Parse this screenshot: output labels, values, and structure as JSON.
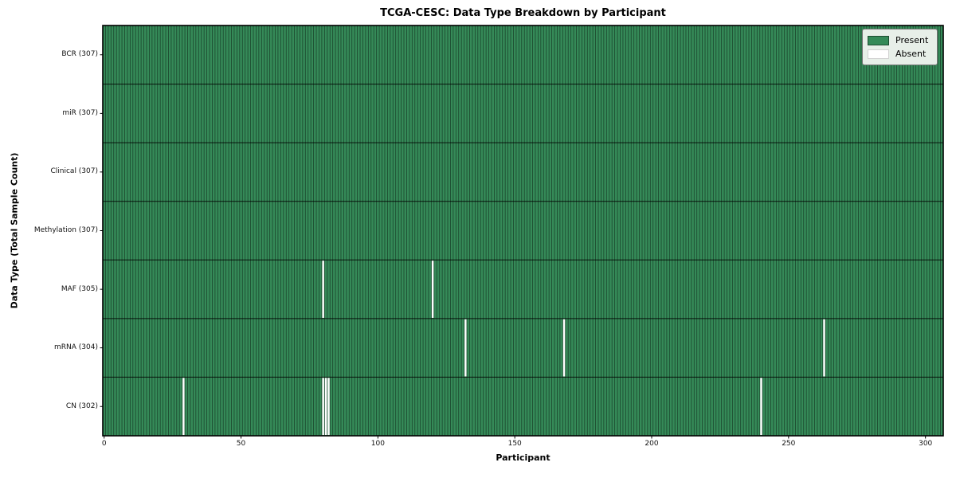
{
  "chart_data": {
    "type": "heatmap",
    "title": "TCGA-CESC: Data Type Breakdown by Participant",
    "xlabel": "Participant",
    "ylabel": "Data Type (Total Sample Count)",
    "n_participants": 307,
    "x_ticks": [
      0,
      50,
      100,
      150,
      200,
      250,
      300
    ],
    "xlim": [
      -0.5,
      306.5
    ],
    "grid": "cell-edges",
    "legend_position": "upper right",
    "rows": [
      {
        "name": "BCR",
        "label": "BCR (307)",
        "present_count": 307,
        "absent_participants": []
      },
      {
        "name": "miR",
        "label": "miR (307)",
        "present_count": 307,
        "absent_participants": []
      },
      {
        "name": "Clinical",
        "label": "Clinical (307)",
        "present_count": 307,
        "absent_participants": []
      },
      {
        "name": "Methylation",
        "label": "Methylation (307)",
        "present_count": 307,
        "absent_participants": []
      },
      {
        "name": "MAF",
        "label": "MAF (305)",
        "present_count": 305,
        "absent_participants": [
          80,
          120
        ]
      },
      {
        "name": "mRNA",
        "label": "mRNA (304)",
        "present_count": 304,
        "absent_participants": [
          132,
          168,
          263
        ]
      },
      {
        "name": "CN",
        "label": "CN (302)",
        "present_count": 302,
        "absent_participants": [
          29,
          80,
          81,
          82,
          240
        ]
      }
    ],
    "legend": [
      {
        "label": "Present",
        "color": "#358a58"
      },
      {
        "label": "Absent",
        "color": "#ffffff"
      }
    ],
    "colors": {
      "present": "#358a58",
      "absent": "#ffffff",
      "cell_edge": "rgba(0,0,0,0.5)",
      "row_line": "rgba(0,0,0,0.85)",
      "frame": "#000000",
      "tick": "#000000",
      "legend_bg": "#e7efe8",
      "legend_border": "#777777"
    }
  }
}
